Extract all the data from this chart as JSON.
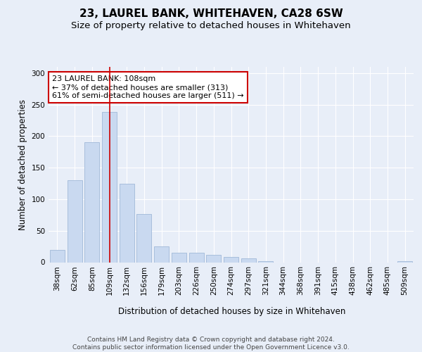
{
  "title": "23, LAUREL BANK, WHITEHAVEN, CA28 6SW",
  "subtitle": "Size of property relative to detached houses in Whitehaven",
  "xlabel": "Distribution of detached houses by size in Whitehaven",
  "ylabel": "Number of detached properties",
  "categories": [
    "38sqm",
    "62sqm",
    "85sqm",
    "109sqm",
    "132sqm",
    "156sqm",
    "179sqm",
    "203sqm",
    "226sqm",
    "250sqm",
    "274sqm",
    "297sqm",
    "321sqm",
    "344sqm",
    "368sqm",
    "391sqm",
    "415sqm",
    "438sqm",
    "462sqm",
    "485sqm",
    "509sqm"
  ],
  "values": [
    20,
    130,
    190,
    238,
    125,
    77,
    25,
    15,
    15,
    12,
    8,
    6,
    2,
    0,
    0,
    0,
    0,
    0,
    0,
    0,
    2
  ],
  "bar_color": "#c9d9f0",
  "bar_edge_color": "#a0b8d8",
  "vline_x": 3,
  "vline_color": "#cc0000",
  "annotation_text": "23 LAUREL BANK: 108sqm\n← 37% of detached houses are smaller (313)\n61% of semi-detached houses are larger (511) →",
  "annotation_box_color": "#ffffff",
  "annotation_box_edge_color": "#cc0000",
  "ylim": [
    0,
    310
  ],
  "yticks": [
    0,
    50,
    100,
    150,
    200,
    250,
    300
  ],
  "footer_text": "Contains HM Land Registry data © Crown copyright and database right 2024.\nContains public sector information licensed under the Open Government Licence v3.0.",
  "background_color": "#e8eef8",
  "plot_background_color": "#e8eef8",
  "title_fontsize": 11,
  "subtitle_fontsize": 9.5,
  "axis_label_fontsize": 8.5,
  "tick_fontsize": 7.5,
  "annotation_fontsize": 8,
  "footer_fontsize": 6.5
}
